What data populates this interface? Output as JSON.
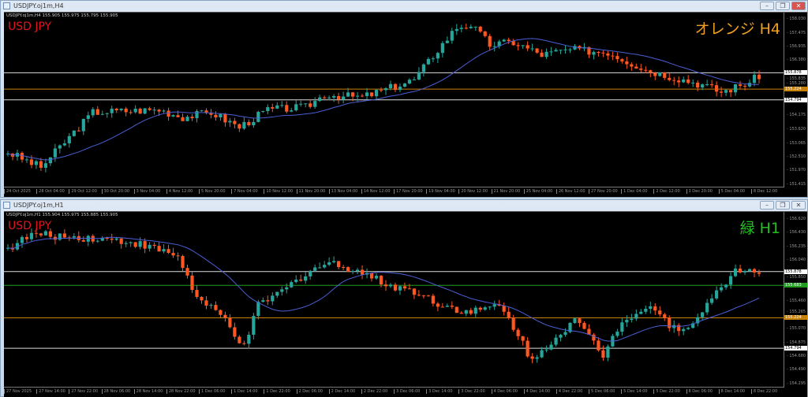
{
  "colors": {
    "bull": "#26a69a",
    "bear": "#ff5722",
    "ma": "#4a5fd6",
    "white_line": "#dddddd",
    "orange_line": "#c8820a",
    "green_line": "#1f9d1f"
  },
  "windows": [
    {
      "title": "USDJPY.oj1m,H4",
      "header": "USDJPY.oj1m,H4  155.905 155.975 155.795 155.905",
      "symbol": "USD JPY",
      "tag": "オレンジ H4",
      "tag_color": "#f0a020",
      "controls": [
        "minimize",
        "restore",
        "close"
      ],
      "chart_data": {
        "type": "candlestick",
        "ylim": [
          151.415,
          158.03
        ],
        "y_ticks": [
          "158.030",
          "157.475",
          "156.935",
          "156.380",
          "155.835",
          "155.280",
          "154.175",
          "153.620",
          "153.065",
          "152.510",
          "151.970",
          "151.415"
        ],
        "y_tick_values": [
          158.03,
          157.475,
          156.935,
          156.38,
          155.835,
          155.28,
          154.175,
          153.62,
          153.065,
          152.51,
          151.97,
          151.415
        ],
        "x_ticks": [
          "24 Oct 2025",
          "28 Oct 04:00",
          "29 Oct 12:00",
          "30 Oct 20:00",
          "3 Nov 04:00",
          "4 Nov 12:00",
          "5 Nov 20:00",
          "7 Nov 04:00",
          "10 Nov 12:00",
          "11 Nov 20:00",
          "13 Nov 04:00",
          "14 Nov 12:00",
          "17 Nov 20:00",
          "19 Nov 04:00",
          "20 Nov 12:00",
          "21 Nov 20:00",
          "25 Nov 04:00",
          "26 Nov 12:00",
          "27 Nov 20:00",
          "1 Dec 04:00",
          "2 Dec 12:00",
          "3 Dec 20:00",
          "5 Dec 04:00",
          "8 Dec 12:00"
        ],
        "candle_count": 160,
        "price_path": [
          [
            0,
            152.7
          ],
          [
            7,
            152.1
          ],
          [
            18,
            154.3
          ],
          [
            32,
            154.4
          ],
          [
            37,
            154.1
          ],
          [
            43,
            154.3
          ],
          [
            49,
            153.7
          ],
          [
            55,
            154.4
          ],
          [
            63,
            154.5
          ],
          [
            67,
            155.0
          ],
          [
            75,
            154.9
          ],
          [
            83,
            155.4
          ],
          [
            86,
            155.6
          ],
          [
            91,
            156.8
          ],
          [
            95,
            157.7
          ],
          [
            98,
            157.8
          ],
          [
            102,
            157.0
          ],
          [
            107,
            157.1
          ],
          [
            113,
            156.6
          ],
          [
            119,
            156.8
          ],
          [
            127,
            156.7
          ],
          [
            135,
            156.0
          ],
          [
            139,
            155.8
          ],
          [
            147,
            155.4
          ],
          [
            151,
            155.1
          ],
          [
            157,
            155.5
          ],
          [
            160,
            155.9
          ]
        ],
        "ma_period": 20,
        "levels": [
          {
            "value": 155.878,
            "label": "155.878",
            "color": "white"
          },
          {
            "value": 155.224,
            "label": "155.224",
            "color": "orange"
          },
          {
            "value": 154.794,
            "label": "154.794",
            "color": "white"
          }
        ]
      }
    },
    {
      "title": "USDJPY.oj1m,H1",
      "header": "USDJPY.oj1m,H1  155.904 155.975 155.885 155.905",
      "symbol": "USD JPY",
      "tag": "緑 H1",
      "tag_color": "#22c022",
      "controls": [
        "minimize",
        "restore",
        "close"
      ],
      "chart_data": {
        "type": "candlestick",
        "ylim": [
          154.295,
          156.62
        ],
        "y_ticks": [
          "156.620",
          "156.430",
          "156.235",
          "156.040",
          "155.850",
          "155.460",
          "155.265",
          "155.070",
          "154.875",
          "154.680",
          "154.490",
          "154.295"
        ],
        "y_tick_values": [
          156.62,
          156.43,
          156.235,
          156.04,
          155.85,
          155.46,
          155.265,
          155.07,
          154.875,
          154.68,
          154.49,
          154.295
        ],
        "x_ticks": [
          "27 Nov 2025",
          "27 Nov 14:00",
          "27 Nov 22:00",
          "28 Nov 06:00",
          "28 Nov 14:00",
          "28 Nov 22:00",
          "1 Dec 06:00",
          "1 Dec 14:00",
          "1 Dec 22:00",
          "2 Dec 06:00",
          "2 Dec 14:00",
          "2 Dec 22:00",
          "3 Dec 06:00",
          "3 Dec 14:00",
          "3 Dec 22:00",
          "4 Dec 06:00",
          "4 Dec 14:00",
          "4 Dec 22:00",
          "5 Dec 06:00",
          "5 Dec 14:00",
          "5 Dec 22:00",
          "8 Dec 06:00",
          "8 Dec 14:00",
          "8 Dec 22:00"
        ],
        "candle_count": 160,
        "price_path": [
          [
            0,
            156.2
          ],
          [
            5,
            156.4
          ],
          [
            18,
            156.35
          ],
          [
            26,
            156.3
          ],
          [
            36,
            156.1
          ],
          [
            40,
            155.5
          ],
          [
            46,
            155.2
          ],
          [
            50,
            154.8
          ],
          [
            53,
            155.4
          ],
          [
            58,
            155.6
          ],
          [
            64,
            155.9
          ],
          [
            68,
            156.0
          ],
          [
            74,
            155.9
          ],
          [
            80,
            155.7
          ],
          [
            86,
            155.6
          ],
          [
            92,
            155.4
          ],
          [
            98,
            155.3
          ],
          [
            104,
            155.4
          ],
          [
            108,
            155.0
          ],
          [
            111,
            154.6
          ],
          [
            115,
            154.9
          ],
          [
            120,
            155.2
          ],
          [
            126,
            154.7
          ],
          [
            130,
            155.2
          ],
          [
            136,
            155.4
          ],
          [
            142,
            155.0
          ],
          [
            148,
            155.4
          ],
          [
            154,
            155.9
          ],
          [
            160,
            155.9
          ]
        ],
        "ma_period": 20,
        "levels": [
          {
            "value": 155.878,
            "label": "155.878",
            "color": "white"
          },
          {
            "value": 155.683,
            "label": "155.683",
            "color": "green"
          },
          {
            "value": 155.224,
            "label": "155.224",
            "color": "orange"
          },
          {
            "value": 154.794,
            "label": "154.794",
            "color": "white"
          }
        ]
      }
    }
  ]
}
